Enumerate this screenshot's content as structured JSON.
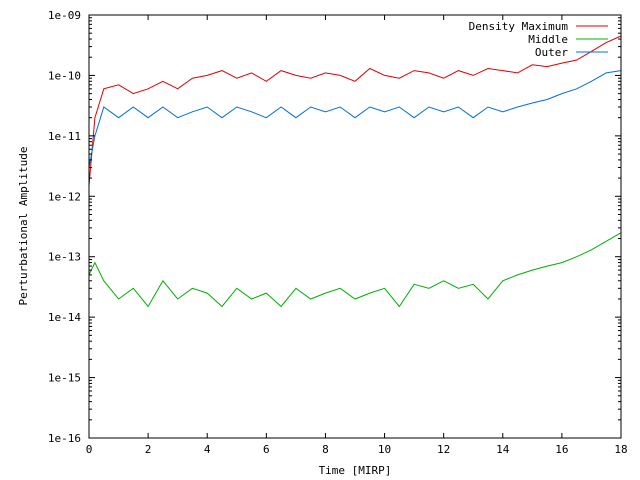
{
  "chart_data": {
    "type": "line",
    "xlabel": "Time [MIRP]",
    "ylabel": "Perturbational Amplitude",
    "xlim": [
      0,
      18
    ],
    "ylim": [
      1e-16,
      1e-09
    ],
    "yscale": "log",
    "grid": false,
    "legend_position": "top-right",
    "x_ticks": [
      "0",
      "2",
      "4",
      "6",
      "8",
      "10",
      "12",
      "14",
      "16",
      "18"
    ],
    "y_ticks": [
      "1e-16",
      "1e-15",
      "1e-14",
      "1e-13",
      "1e-12",
      "1e-11",
      "1e-10",
      "1e-09"
    ],
    "series": [
      {
        "name": "Density Maximum",
        "color": "#e00000",
        "x": [
          0,
          0.2,
          0.5,
          1,
          1.5,
          2,
          2.5,
          3,
          3.5,
          4,
          4.5,
          5,
          5.5,
          6,
          6.5,
          7,
          7.5,
          8,
          8.5,
          9,
          9.5,
          10,
          10.5,
          11,
          11.5,
          12,
          12.5,
          13,
          13.5,
          14,
          14.5,
          15,
          15.5,
          16,
          16.5,
          17,
          17.5,
          18
        ],
        "y": [
          1.5e-12,
          2e-11,
          6e-11,
          7e-11,
          5e-11,
          6e-11,
          8e-11,
          6e-11,
          9e-11,
          1e-10,
          1.2e-10,
          9e-11,
          1.1e-10,
          8e-11,
          1.2e-10,
          1e-10,
          9e-11,
          1.1e-10,
          1e-10,
          8e-11,
          1.3e-10,
          1e-10,
          9e-11,
          1.2e-10,
          1.1e-10,
          9e-11,
          1.2e-10,
          1e-10,
          1.3e-10,
          1.2e-10,
          1.1e-10,
          1.5e-10,
          1.4e-10,
          1.6e-10,
          1.8e-10,
          2.5e-10,
          3.5e-10,
          4.5e-10
        ]
      },
      {
        "name": "Middle",
        "color": "#00b000",
        "x": [
          0,
          0.2,
          0.5,
          1,
          1.5,
          2,
          2.5,
          3,
          3.5,
          4,
          4.5,
          5,
          5.5,
          6,
          6.5,
          7,
          7.5,
          8,
          8.5,
          9,
          9.5,
          10,
          10.5,
          11,
          11.5,
          12,
          12.5,
          13,
          13.5,
          14,
          14.5,
          15,
          15.5,
          16,
          16.5,
          17,
          17.5,
          18
        ],
        "y": [
          5e-14,
          8e-14,
          4e-14,
          2e-14,
          3e-14,
          1.5e-14,
          4e-14,
          2e-14,
          3e-14,
          2.5e-14,
          1.5e-14,
          3e-14,
          2e-14,
          2.5e-14,
          1.5e-14,
          3e-14,
          2e-14,
          2.5e-14,
          3e-14,
          2e-14,
          2.5e-14,
          3e-14,
          1.5e-14,
          3.5e-14,
          3e-14,
          4e-14,
          3e-14,
          3.5e-14,
          2e-14,
          4e-14,
          5e-14,
          6e-14,
          7e-14,
          8e-14,
          1e-13,
          1.3e-13,
          1.8e-13,
          2.5e-13
        ]
      },
      {
        "name": "Outer",
        "color": "#0070e0",
        "x": [
          0,
          0.2,
          0.5,
          1,
          1.5,
          2,
          2.5,
          3,
          3.5,
          4,
          4.5,
          5,
          5.5,
          6,
          6.5,
          7,
          7.5,
          8,
          8.5,
          9,
          9.5,
          10,
          10.5,
          11,
          11.5,
          12,
          12.5,
          13,
          13.5,
          14,
          14.5,
          15,
          15.5,
          16,
          16.5,
          17,
          17.5,
          18
        ],
        "y": [
          3e-12,
          1e-11,
          3e-11,
          2e-11,
          3e-11,
          2e-11,
          3e-11,
          2e-11,
          2.5e-11,
          3e-11,
          2e-11,
          3e-11,
          2.5e-11,
          2e-11,
          3e-11,
          2e-11,
          3e-11,
          2.5e-11,
          3e-11,
          2e-11,
          3e-11,
          2.5e-11,
          3e-11,
          2e-11,
          3e-11,
          2.5e-11,
          3e-11,
          2e-11,
          3e-11,
          2.5e-11,
          3e-11,
          3.5e-11,
          4e-11,
          5e-11,
          6e-11,
          8e-11,
          1.1e-10,
          1.2e-10
        ]
      }
    ]
  }
}
